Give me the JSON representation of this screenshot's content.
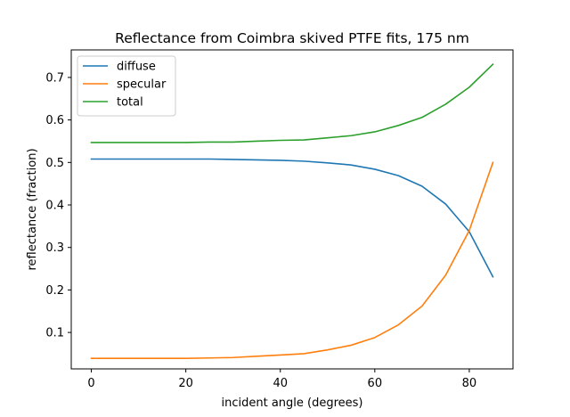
{
  "chart_data": {
    "type": "line",
    "title": "Reflectance from Coimbra skived PTFE fits, 175 nm",
    "xlabel": "incident angle (degrees)",
    "ylabel": "reflectance (fraction)",
    "xlim": [
      -4.25,
      89.25
    ],
    "ylim": [
      0.0143,
      0.7648
    ],
    "xticks": [
      0,
      20,
      40,
      60,
      80
    ],
    "yticks": [
      0.1,
      0.2,
      0.3,
      0.4,
      0.5,
      0.6,
      0.7
    ],
    "grid": false,
    "legend_position": "top-left",
    "x": [
      0,
      5,
      10,
      15,
      20,
      25,
      30,
      35,
      40,
      45,
      50,
      55,
      60,
      65,
      70,
      75,
      80,
      85
    ],
    "series": [
      {
        "name": "diffuse",
        "color": "#1f77b4",
        "values": [
          0.508,
          0.508,
          0.508,
          0.508,
          0.508,
          0.508,
          0.507,
          0.506,
          0.505,
          0.503,
          0.499,
          0.494,
          0.484,
          0.469,
          0.444,
          0.402,
          0.337,
          0.231
        ]
      },
      {
        "name": "specular",
        "color": "#ff7f0e",
        "values": [
          0.039,
          0.039,
          0.039,
          0.039,
          0.039,
          0.04,
          0.041,
          0.044,
          0.047,
          0.05,
          0.059,
          0.07,
          0.088,
          0.118,
          0.162,
          0.235,
          0.34,
          0.5
        ]
      },
      {
        "name": "total",
        "color": "#2ca02c",
        "values": [
          0.547,
          0.547,
          0.547,
          0.547,
          0.547,
          0.548,
          0.548,
          0.55,
          0.552,
          0.553,
          0.558,
          0.563,
          0.572,
          0.587,
          0.606,
          0.637,
          0.677,
          0.731
        ]
      }
    ]
  }
}
